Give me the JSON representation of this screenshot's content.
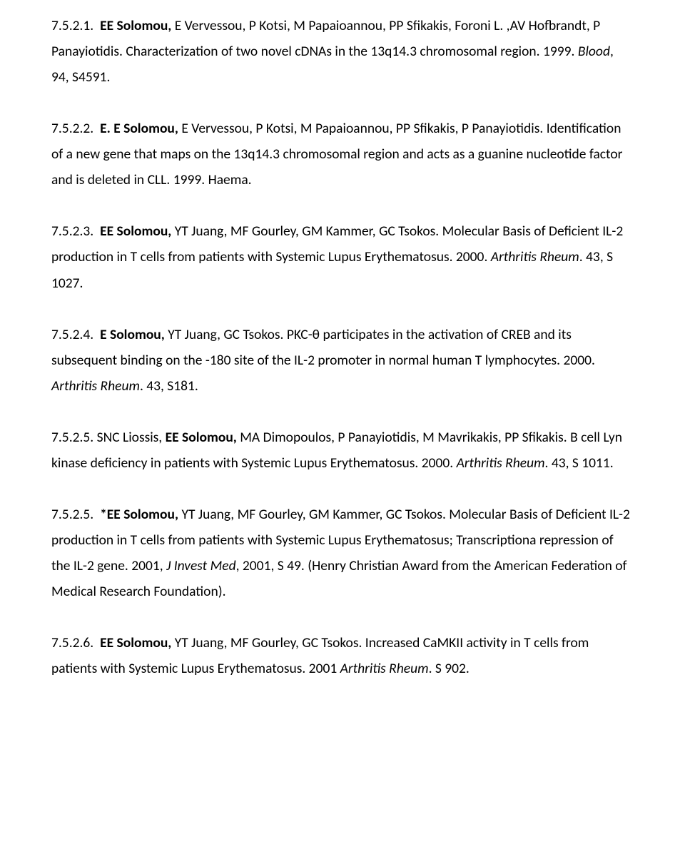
{
  "entries": [
    {
      "num": "7.5.2.1.",
      "lead_bold": "EE Solomou,",
      "rest": " E Vervessou, P Kotsi, M Papaioannou, PP Sfikakis, Foroni L. ,AV Hofbrandt, P Panayiotidis. Characterization of two novel cDNAs in the 13q14.3 chromosomal region. 1999. ",
      "journal": "Blood",
      "tail": ", 94, S4591."
    },
    {
      "num": "7.5.2.2.",
      "lead_bold": "E. E Solomou,",
      "rest": " E Vervessou, P Kotsi, M Papaioannou, PP Sfikakis, P Panayiotidis. Identification of a new gene that maps on the 13q14.3 chromosomal region and acts as a guanine nucleotide factor and is deleted in CLL. 1999. Haema.",
      "journal": "",
      "tail": ""
    },
    {
      "num": "7.5.2.3.",
      "lead_bold": "EE Solomou,",
      "rest": " YT Juang, MF Gourley, GM Kammer, GC Tsokos. Molecular Basis of Deficient IL-2 production in T cells from patients with Systemic Lupus Erythematosus. 2000. ",
      "journal": "Arthritis Rheum",
      "tail": ". 43, S 1027."
    },
    {
      "num": "7.5.2.4.",
      "lead_bold": "E Solomou,",
      "rest": " YT Juang, GC Tsokos. PKC-θ participates in the activation of CREB and its subsequent binding on the -180 site of the IL-2 promoter in normal human T lymphocytes. 2000. ",
      "journal": "Arthritis Rheum",
      "tail": ". 43, S181."
    },
    {
      "num": "7.5.2.5.",
      "pre": " SNC Liossis, ",
      "lead_bold": "EE Solomou,",
      "rest": " MA Dimopoulos, P Panayiotidis, M Mavrikakis, PP Sfikakis. B cell Lyn kinase deficiency in patients with Systemic Lupus Erythematosus. 2000. ",
      "journal": "Arthritis Rheum",
      "tail": ". 43, S 1011."
    },
    {
      "num": "7.5.2.5.",
      "lead_bold": "*EE Solomou,",
      "rest": " YT Juang, MF Gourley, GM Kammer, GC Tsokos. Molecular Basis of Deficient IL-2 production in T cells from patients with Systemic Lupus Erythematosus; Transcriptiona repression of the IL-2 gene. 2001, ",
      "journal": "J Invest Med",
      "tail": ", 2001, S 49. (Henry Christian Award from the American Federation of Medical Research Foundation)."
    },
    {
      "num": "7.5.2.6.",
      "lead_bold": "EE Solomou,",
      "rest": " YT Juang, MF Gourley, GC Tsokos. Increased CaMKII activity in T cells from patients with Systemic Lupus Erythematosus. 2001 ",
      "journal": "Arthritis Rheum",
      "tail": ". S 902."
    }
  ]
}
